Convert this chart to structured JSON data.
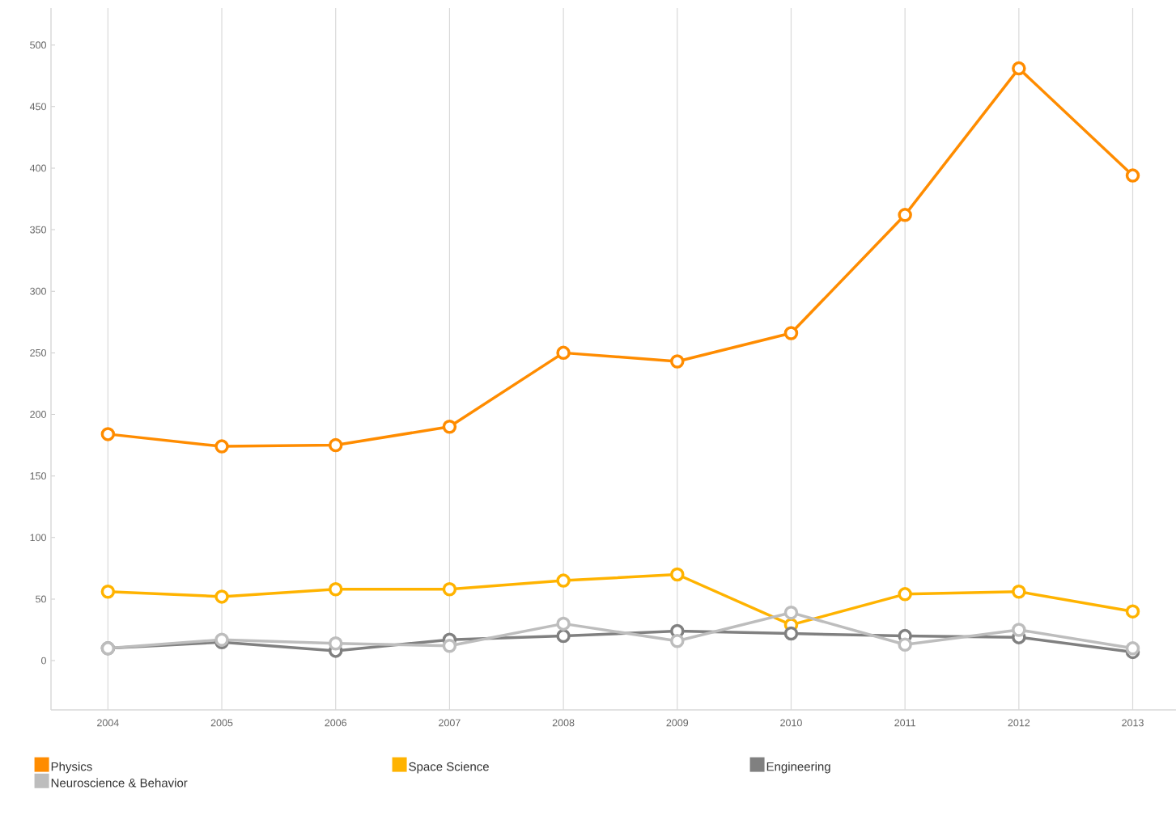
{
  "chart_data": {
    "type": "line",
    "categories": [
      "2004",
      "2005",
      "2006",
      "2007",
      "2008",
      "2009",
      "2010",
      "2011",
      "2012",
      "2013"
    ],
    "series": [
      {
        "name": "Physics",
        "color": "#ff8c00",
        "values": [
          184,
          174,
          175,
          190,
          250,
          243,
          266,
          362,
          481,
          394
        ]
      },
      {
        "name": "Space Science",
        "color": "#ffb300",
        "values": [
          56,
          52,
          58,
          58,
          65,
          70,
          29,
          54,
          56,
          40
        ]
      },
      {
        "name": "Engineering",
        "color": "#808080",
        "values": [
          10,
          15,
          8,
          17,
          20,
          24,
          22,
          20,
          19,
          7
        ]
      },
      {
        "name": "Neuroscience & Behavior",
        "color": "#bdbdbd",
        "values": [
          10,
          17,
          14,
          12,
          30,
          16,
          39,
          13,
          25,
          10
        ]
      }
    ],
    "ylim": [
      -40,
      530
    ],
    "yticks": [
      0,
      50,
      100,
      150,
      200,
      250,
      300,
      350,
      400,
      450,
      500
    ],
    "grid": "x",
    "legend": "bottom",
    "marker": "circle",
    "line_style": "solid"
  }
}
